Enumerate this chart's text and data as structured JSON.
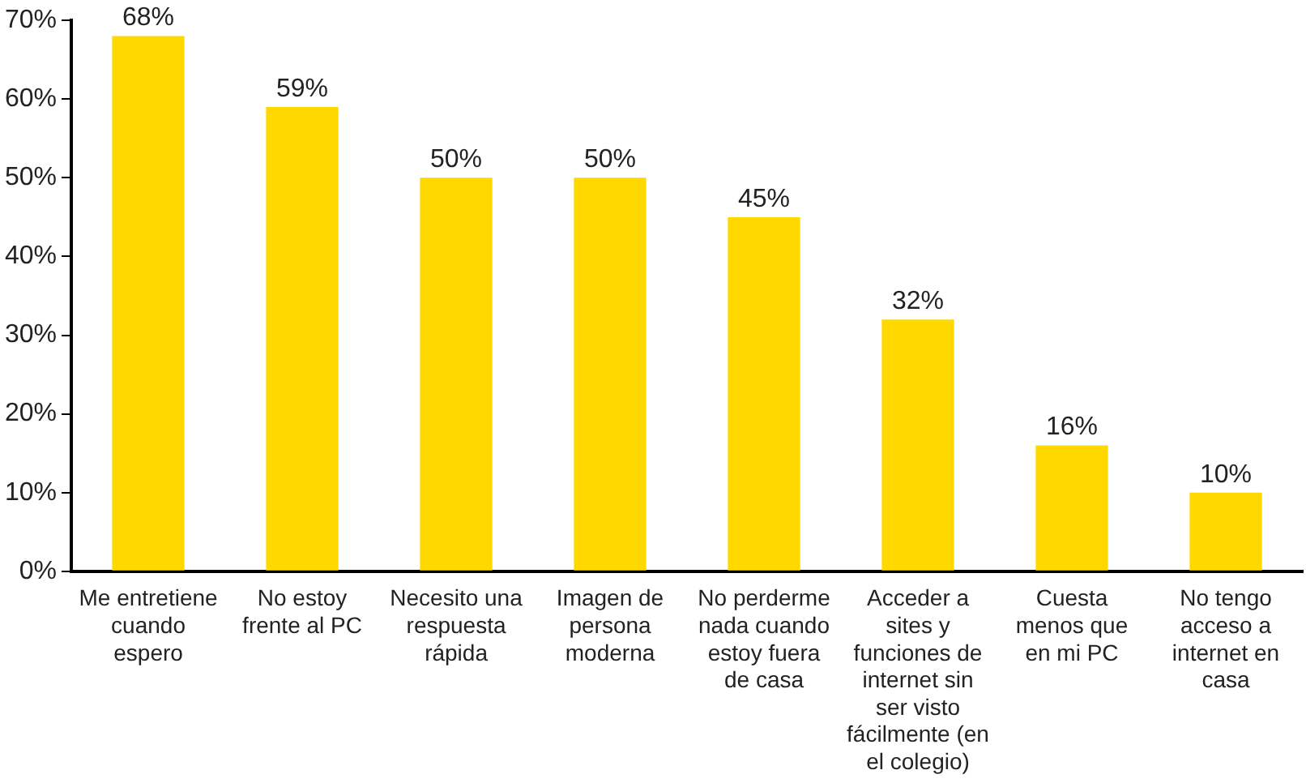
{
  "chart_data": {
    "type": "bar",
    "categories": [
      "Me entretiene cuando espero",
      "No estoy frente al PC",
      "Necesito una respuesta rápida",
      "Imagen de persona moderna",
      "No perderme nada cuando estoy fuera de casa",
      "Acceder a sites y funciones de internet sin ser visto fácilmente (en el colegio)",
      "Cuesta menos que en mi PC",
      "No tengo acceso a internet en casa"
    ],
    "values": [
      68,
      59,
      50,
      50,
      45,
      32,
      16,
      10
    ],
    "color": "#ffd800",
    "ylim": [
      0,
      70
    ],
    "yticks": [
      {
        "value": 0,
        "label": "0%"
      },
      {
        "value": 10,
        "label": "10%"
      },
      {
        "value": 20,
        "label": "20%"
      },
      {
        "value": 30,
        "label": "30%"
      },
      {
        "value": 40,
        "label": "40%"
      },
      {
        "value": 50,
        "label": "50%"
      },
      {
        "value": 60,
        "label": "60%"
      },
      {
        "value": 70,
        "label": "70%"
      }
    ],
    "value_labels": [
      "68%",
      "59%",
      "50%",
      "50%",
      "45%",
      "32%",
      "16%",
      "10%"
    ],
    "grid": false,
    "legend": false
  }
}
